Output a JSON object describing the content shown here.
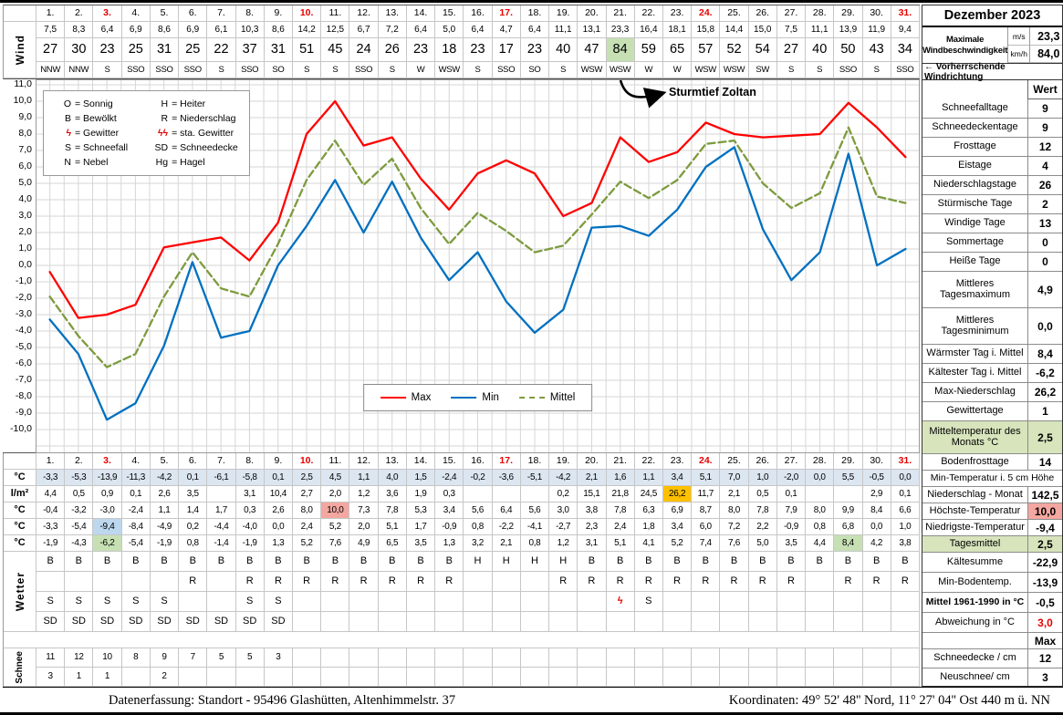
{
  "days": [
    "1.",
    "2.",
    "3.",
    "4.",
    "5.",
    "6.",
    "7.",
    "8.",
    "9.",
    "10.",
    "11.",
    "12.",
    "13.",
    "14.",
    "15.",
    "16.",
    "17.",
    "18.",
    "19.",
    "20.",
    "21.",
    "22.",
    "23.",
    "24.",
    "25.",
    "26.",
    "27.",
    "28.",
    "29.",
    "30.",
    "31."
  ],
  "sundays": [
    2,
    9,
    16,
    23,
    30
  ],
  "wind": {
    "label": "Wind",
    "ms": [
      "7,5",
      "8,3",
      "6,4",
      "6,9",
      "8,6",
      "6,9",
      "6,1",
      "10,3",
      "8,6",
      "14,2",
      "12,5",
      "6,7",
      "7,2",
      "6,4",
      "5,0",
      "6,4",
      "4,7",
      "6,4",
      "11,1",
      "13,1",
      "23,3",
      "16,4",
      "18,1",
      "15,8",
      "14,4",
      "15,0",
      "7,5",
      "11,1",
      "13,9",
      "11,9",
      "9,4"
    ],
    "kmh": [
      "27",
      "30",
      "23",
      "25",
      "31",
      "25",
      "22",
      "37",
      "31",
      "51",
      "45",
      "24",
      "26",
      "23",
      "18",
      "23",
      "17",
      "23",
      "40",
      "47",
      "84",
      "59",
      "65",
      "57",
      "52",
      "54",
      "27",
      "40",
      "50",
      "43",
      "34"
    ],
    "dir": [
      "NNW",
      "NNW",
      "S",
      "SSO",
      "SSO",
      "SSO",
      "S",
      "SSO",
      "SO",
      "S",
      "S",
      "SSO",
      "S",
      "W",
      "WSW",
      "S",
      "SSO",
      "SO",
      "S",
      "WSW",
      "WSW",
      "W",
      "W",
      "WSW",
      "WSW",
      "SW",
      "S",
      "S",
      "SSO",
      "S",
      "SSO"
    ],
    "kmh_highlight": 20
  },
  "chart_data": {
    "type": "line",
    "x": [
      1,
      2,
      3,
      4,
      5,
      6,
      7,
      8,
      9,
      10,
      11,
      12,
      13,
      14,
      15,
      16,
      17,
      18,
      19,
      20,
      21,
      22,
      23,
      24,
      25,
      26,
      27,
      28,
      29,
      30,
      31
    ],
    "ylim": [
      -10,
      11
    ],
    "ytick_step": 1,
    "grid": true,
    "legend_position": "bottom-center-inside",
    "annotation": "Sturmtief Zoltan",
    "series": [
      {
        "name": "Max",
        "color": "#ff0000",
        "dashed": false,
        "values": [
          -0.4,
          -3.2,
          -3.0,
          -2.4,
          1.1,
          1.4,
          1.7,
          0.3,
          2.6,
          8.0,
          10.0,
          7.3,
          7.8,
          5.3,
          3.4,
          5.6,
          6.4,
          5.6,
          3.0,
          3.8,
          7.8,
          6.3,
          6.9,
          8.7,
          8.0,
          7.8,
          7.9,
          8.0,
          9.9,
          8.4,
          6.6
        ]
      },
      {
        "name": "Min",
        "color": "#0070c0",
        "dashed": false,
        "values": [
          -3.3,
          -5.4,
          -9.4,
          -8.4,
          -4.9,
          0.2,
          -4.4,
          -4.0,
          0.0,
          2.4,
          5.2,
          2.0,
          5.1,
          1.7,
          -0.9,
          0.8,
          -2.2,
          -4.1,
          -2.7,
          2.3,
          2.4,
          1.8,
          3.4,
          6.0,
          7.2,
          2.2,
          -0.9,
          0.8,
          6.8,
          0.0,
          1.0
        ]
      },
      {
        "name": "Mittel",
        "color": "#7d9b3e",
        "dashed": true,
        "values": [
          -1.9,
          -4.3,
          -6.2,
          -5.4,
          -1.9,
          0.8,
          -1.4,
          -1.9,
          1.3,
          5.2,
          7.6,
          4.9,
          6.5,
          3.5,
          1.3,
          3.2,
          2.1,
          0.8,
          1.2,
          3.1,
          5.1,
          4.1,
          5.2,
          7.4,
          7.6,
          5.0,
          3.5,
          4.4,
          8.4,
          4.2,
          3.8
        ]
      }
    ],
    "code_legend": [
      {
        "sym": "O",
        "def": "= Sonnig",
        "red": false
      },
      {
        "sym": "H",
        "def": "= Heiter",
        "red": false
      },
      {
        "sym": "B",
        "def": "= Bewölkt",
        "red": false
      },
      {
        "sym": "R",
        "def": "= Niederschlag",
        "red": false
      },
      {
        "sym": "ϟ",
        "def": "= Gewitter",
        "red": true
      },
      {
        "sym": "ϟϟ",
        "def": "= sta. Gewitter",
        "red": true
      },
      {
        "sym": "S",
        "def": "= Schneefall",
        "red": false
      },
      {
        "sym": "SD",
        "def": "= Schneedecke",
        "red": false
      },
      {
        "sym": "N",
        "def": "= Nebel",
        "red": false
      },
      {
        "sym": "Hg",
        "def": "= Hagel",
        "red": false
      }
    ]
  },
  "bottom": {
    "temp5cm": {
      "label": "°C",
      "values": [
        "-3,3",
        "-5,3",
        "-13,9",
        "-11,3",
        "-4,2",
        "0,1",
        "-6,1",
        "-5,8",
        "0,1",
        "2,5",
        "4,5",
        "1,1",
        "4,0",
        "1,5",
        "-2,4",
        "-0,2",
        "-3,6",
        "-5,1",
        "-4,2",
        "2,1",
        "1,6",
        "1,1",
        "3,4",
        "5,1",
        "7,0",
        "1,0",
        "-2,0",
        "0,0",
        "5,5",
        "-0,5",
        "0,0"
      ]
    },
    "precip": {
      "label": "l/m²",
      "values": [
        "4,4",
        "0,5",
        "0,9",
        "0,1",
        "2,6",
        "3,5",
        "",
        "3,1",
        "10,4",
        "2,7",
        "2,0",
        "1,2",
        "3,6",
        "1,9",
        "0,3",
        "",
        "",
        "",
        "0,2",
        "15,1",
        "21,8",
        "24,5",
        "26,2",
        "11,7",
        "2,1",
        "0,5",
        "0,1",
        "",
        "",
        "2,9",
        "0,1"
      ]
    },
    "tmax": {
      "label": "°C",
      "values": [
        "-0,4",
        "-3,2",
        "-3,0",
        "-2,4",
        "1,1",
        "1,4",
        "1,7",
        "0,3",
        "2,6",
        "8,0",
        "10,0",
        "7,3",
        "7,8",
        "5,3",
        "3,4",
        "5,6",
        "6,4",
        "5,6",
        "3,0",
        "3,8",
        "7,8",
        "6,3",
        "6,9",
        "8,7",
        "8,0",
        "7,8",
        "7,9",
        "8,0",
        "9,9",
        "8,4",
        "6,6"
      ]
    },
    "tmin": {
      "label": "°C",
      "values": [
        "-3,3",
        "-5,4",
        "-9,4",
        "-8,4",
        "-4,9",
        "0,2",
        "-4,4",
        "-4,0",
        "0,0",
        "2,4",
        "5,2",
        "2,0",
        "5,1",
        "1,7",
        "-0,9",
        "0,8",
        "-2,2",
        "-4,1",
        "-2,7",
        "2,3",
        "2,4",
        "1,8",
        "3,4",
        "6,0",
        "7,2",
        "2,2",
        "-0,9",
        "0,8",
        "6,8",
        "0,0",
        "1,0"
      ]
    },
    "tmean": {
      "label": "°C",
      "values": [
        "-1,9",
        "-4,3",
        "-6,2",
        "-5,4",
        "-1,9",
        "0,8",
        "-1,4",
        "-1,9",
        "1,3",
        "5,2",
        "7,6",
        "4,9",
        "6,5",
        "3,5",
        "1,3",
        "3,2",
        "2,1",
        "0,8",
        "1,2",
        "3,1",
        "5,1",
        "4,1",
        "5,2",
        "7,4",
        "7,6",
        "5,0",
        "3,5",
        "4,4",
        "8,4",
        "4,2",
        "3,8"
      ]
    },
    "wetter": {
      "label": "Wetter",
      "rows": [
        [
          "B",
          "B",
          "B",
          "B",
          "B",
          "B",
          "B",
          "B",
          "B",
          "B",
          "B",
          "B",
          "B",
          "B",
          "B",
          "H",
          "H",
          "H",
          "H",
          "B",
          "B",
          "B",
          "B",
          "B",
          "B",
          "B",
          "B",
          "B",
          "B",
          "B",
          "B"
        ],
        [
          "",
          "",
          "",
          "",
          "",
          "R",
          "",
          "R",
          "R",
          "R",
          "R",
          "R",
          "R",
          "R",
          "R",
          "",
          "",
          "",
          "R",
          "R",
          "R",
          "R",
          "R",
          "R",
          "R",
          "R",
          "R",
          "",
          "R",
          "R",
          "R"
        ],
        [
          "S",
          "S",
          "S",
          "S",
          "S",
          "",
          "",
          "S",
          "S",
          "",
          "",
          "",
          "",
          "",
          "",
          "",
          "",
          "",
          "",
          "",
          "ϟ",
          "S",
          "",
          "",
          "",
          "",
          "",
          "",
          "",
          "",
          ""
        ],
        [
          "SD",
          "SD",
          "SD",
          "SD",
          "SD",
          "SD",
          "SD",
          "SD",
          "SD",
          "",
          "",
          "",
          "",
          "",
          "",
          "",
          "",
          "",
          "",
          "",
          "",
          "",
          "",
          "",
          "",
          "",
          "",
          "",
          "",
          "",
          ""
        ]
      ]
    },
    "schnee": {
      "label": "Schnee",
      "rows": [
        [
          "11",
          "12",
          "10",
          "8",
          "9",
          "7",
          "5",
          "5",
          "3",
          "",
          "",
          "",
          "",
          "",
          "",
          "",
          "",
          "",
          "",
          "",
          "",
          "",
          "",
          "",
          "",
          "",
          "",
          "",
          "",
          "",
          ""
        ],
        [
          "3",
          "1",
          "1",
          "",
          "2",
          "",
          "",
          "",
          "",
          "",
          "",
          "",
          "",
          "",
          "",
          "",
          "",
          "",
          "",
          "",
          "",
          "",
          "",
          "",
          "",
          "",
          "",
          "",
          "",
          "",
          ""
        ]
      ]
    }
  },
  "right_panel": {
    "title": "Dezember 2023",
    "max_wind": {
      "label": "Maximale Windbeschwindigkeit",
      "units": [
        "m/s",
        "km/h"
      ],
      "values": [
        "23,3",
        "84,0"
      ]
    },
    "wind_dir_note": "← Vorherrschende Windrichtung",
    "wert_header": "Wert",
    "rows": [
      {
        "label": "Schneefalltage",
        "value": "9"
      },
      {
        "label": "Schneedeckentage",
        "value": "9"
      },
      {
        "label": "Frosttage",
        "value": "12"
      },
      {
        "label": "Eistage",
        "value": "4"
      },
      {
        "label": "Niederschlagstage",
        "value": "26"
      },
      {
        "label": "Stürmische Tage",
        "value": "2"
      },
      {
        "label": "Windige Tage",
        "value": "13"
      },
      {
        "label": "Sommertage",
        "value": "0"
      },
      {
        "label": "Heiße Tage",
        "value": "0"
      },
      {
        "label": "Mittleres Tagesmaximum",
        "value": "4,9"
      },
      {
        "label": "Mittleres Tagesminimum",
        "value": "0,0"
      },
      {
        "label": "Wärmster Tag i. Mittel",
        "value": "8,4"
      },
      {
        "label": "Kältester Tag i. Mittel",
        "value": "-6,2"
      },
      {
        "label": "Max-Niederschlag",
        "value": "26,2"
      },
      {
        "label": "Gewittertage",
        "value": "1"
      },
      {
        "label": "Mitteltemperatur des Monats °C",
        "value": "2,5",
        "bg": "green"
      },
      {
        "label": "Bodenfrosttage",
        "value": "14"
      },
      {
        "label": "Min-Temperatur i. 5 cm Höhe",
        "value": "",
        "full_label": true
      },
      {
        "label": "Niederschlag - Monat",
        "value": "142,5"
      },
      {
        "label": "Höchste-Temperatur",
        "value": "10,0",
        "value_bg": "pink"
      },
      {
        "label": "Niedrigste-Temperatur",
        "value": "-9,4"
      },
      {
        "label": "Tagesmittel",
        "value": "2,5",
        "bg": "green"
      },
      {
        "label": "Kältesumme",
        "value": "-22,9"
      },
      {
        "label": "Min-Bodentemp.",
        "value": "-13,9"
      },
      {
        "label": "Mittel 1961-1990 in °C",
        "value": "-0,5",
        "bold_label": true
      },
      {
        "label": "Abweichung in °C",
        "value": "3,0",
        "value_color": "red"
      },
      {
        "label": "",
        "value": "Max"
      },
      {
        "label": "Schneedecke / cm",
        "value": "12"
      },
      {
        "label": "Neuschnee/ cm",
        "value": "3"
      }
    ]
  },
  "footer": {
    "left": "Datenerfassung:  Standort -  95496  Glashütten, Altenhimmelstr. 37",
    "right": "Koordinaten:  49° 52' 48'' Nord,   11° 27' 04'' Ost   440 m ü. NN"
  }
}
